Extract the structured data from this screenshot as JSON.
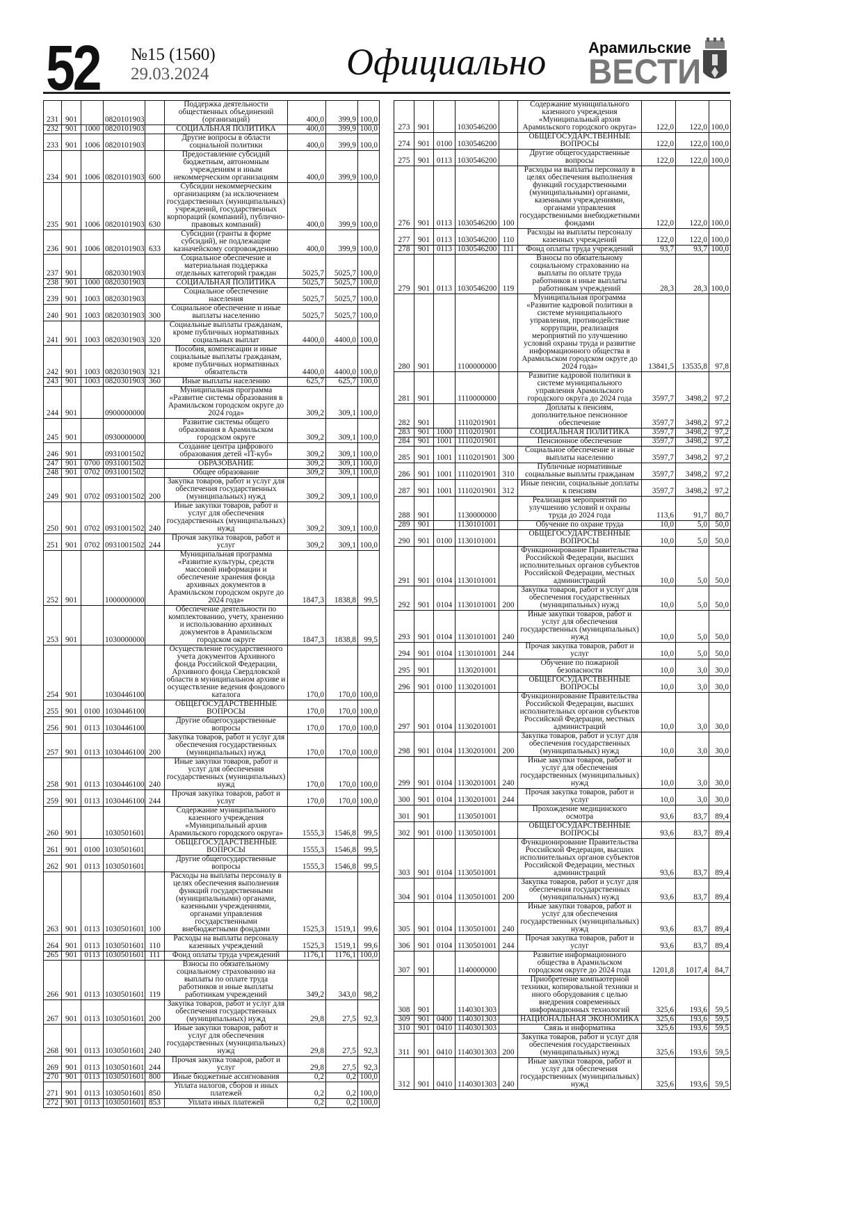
{
  "header": {
    "page_number": "52",
    "issue": "№15 (1560)",
    "date": "29.03.2024",
    "section_title": "Официально",
    "logo_top": "Арамильские",
    "logo_main": "ВЕСТИ",
    "logo_icon": "coat-of-arms-icon"
  },
  "tables": {
    "left": [
      [
        "231",
        "901",
        "",
        "0820101903",
        "",
        "Поддержка деятельности общественных объединений (организаций)",
        "400,0",
        "399,9",
        "100,0"
      ],
      [
        "232",
        "901",
        "1000",
        "0820101903",
        "",
        "СОЦИАЛЬНАЯ ПОЛИТИКА",
        "400,0",
        "399,9",
        "100,0"
      ],
      [
        "233",
        "901",
        "1006",
        "0820101903",
        "",
        "Другие вопросы в области социальной политики",
        "400,0",
        "399,9",
        "100,0"
      ],
      [
        "234",
        "901",
        "1006",
        "0820101903",
        "600",
        "Предоставление субсидий бюджетным, автономным учреждениям и иным некоммерческим организациям",
        "400,0",
        "399,9",
        "100,0"
      ],
      [
        "235",
        "901",
        "1006",
        "0820101903",
        "630",
        "Субсидии некоммерческим организациям (за исключением государственных (муниципальных) учреждений, государственных корпораций (компаний), публично-правовых компаний)",
        "400,0",
        "399,9",
        "100,0"
      ],
      [
        "236",
        "901",
        "1006",
        "0820101903",
        "633",
        "Субсидии (гранты в форме субсидий), не подлежащие казначейскому сопровождению",
        "400,0",
        "399,9",
        "100,0"
      ],
      [
        "237",
        "901",
        "",
        "0820301903",
        "",
        "Социальное обеспечение и материальная поддержка отдельных категорий граждан",
        "5025,7",
        "5025,7",
        "100,0"
      ],
      [
        "238",
        "901",
        "1000",
        "0820301903",
        "",
        "СОЦИАЛЬНАЯ ПОЛИТИКА",
        "5025,7",
        "5025,7",
        "100,0"
      ],
      [
        "239",
        "901",
        "1003",
        "0820301903",
        "",
        "Социальное обеспечение населения",
        "5025,7",
        "5025,7",
        "100,0"
      ],
      [
        "240",
        "901",
        "1003",
        "0820301903",
        "300",
        "Социальное обеспечение и иные выплаты населению",
        "5025,7",
        "5025,7",
        "100,0"
      ],
      [
        "241",
        "901",
        "1003",
        "0820301903",
        "320",
        "Социальные выплаты гражданам, кроме публичных нормативных социальных выплат",
        "4400,0",
        "4400,0",
        "100,0"
      ],
      [
        "242",
        "901",
        "1003",
        "0820301903",
        "321",
        "Пособия, компенсации и иные социальные выплаты гражданам, кроме публичных нормативных обязательств",
        "4400,0",
        "4400,0",
        "100,0"
      ],
      [
        "243",
        "901",
        "1003",
        "0820301903",
        "360",
        "Иные выплаты населению",
        "625,7",
        "625,7",
        "100,0"
      ],
      [
        "244",
        "901",
        "",
        "0900000000",
        "",
        "Муниципальная программа «Развитие системы образования в Арамильском городском округе до 2024 года»",
        "309,2",
        "309,1",
        "100,0"
      ],
      [
        "245",
        "901",
        "",
        "0930000000",
        "",
        "Развитие системы общего образования в Арамильском городском округе",
        "309,2",
        "309,1",
        "100,0"
      ],
      [
        "246",
        "901",
        "",
        "0931001502",
        "",
        "Создание центра цифрового образования детей «IT-куб»",
        "309,2",
        "309,1",
        "100,0"
      ],
      [
        "247",
        "901",
        "0700",
        "0931001502",
        "",
        "ОБРАЗОВАНИЕ",
        "309,2",
        "309,1",
        "100,0"
      ],
      [
        "248",
        "901",
        "0702",
        "0931001502",
        "",
        "Общее образование",
        "309,2",
        "309,1",
        "100,0"
      ],
      [
        "249",
        "901",
        "0702",
        "0931001502",
        "200",
        "Закупка товаров, работ и услуг для обеспечения государственных (муниципальных) нужд",
        "309,2",
        "309,1",
        "100,0"
      ],
      [
        "250",
        "901",
        "0702",
        "0931001502",
        "240",
        "Иные закупки товаров, работ и услуг для обеспечения государственных (муниципальных) нужд",
        "309,2",
        "309,1",
        "100,0"
      ],
      [
        "251",
        "901",
        "0702",
        "0931001502",
        "244",
        "Прочая закупка товаров, работ и услуг",
        "309,2",
        "309,1",
        "100,0"
      ],
      [
        "252",
        "901",
        "",
        "1000000000",
        "",
        "Муниципальная программа «Развитие культуры, средств массовой информации и обеспечение хранения фонда архивных документов в Арамильском городском округе до 2024 года»",
        "1847,3",
        "1838,8",
        "99,5"
      ],
      [
        "253",
        "901",
        "",
        "1030000000",
        "",
        "Обеспечение деятельности по комплектованию, учету, хранению и использованию архивных документов в Арамильском городском округе",
        "1847,3",
        "1838,8",
        "99,5"
      ],
      [
        "254",
        "901",
        "",
        "1030446100",
        "",
        "Осуществление государственного учета документов Архивного фонда Российской Федерации, Архивного фонда Свердловской области в муниципальном архиве и осуществление ведения фондового каталога",
        "170,0",
        "170,0",
        "100,0"
      ],
      [
        "255",
        "901",
        "0100",
        "1030446100",
        "",
        "ОБЩЕГОСУДАРСТВЕННЫЕ ВОПРОСЫ",
        "170,0",
        "170,0",
        "100,0"
      ],
      [
        "256",
        "901",
        "0113",
        "1030446100",
        "",
        "Другие общегосударственные вопросы",
        "170,0",
        "170,0",
        "100,0"
      ],
      [
        "257",
        "901",
        "0113",
        "1030446100",
        "200",
        "Закупка товаров, работ и услуг для обеспечения государственных (муниципальных) нужд",
        "170,0",
        "170,0",
        "100,0"
      ],
      [
        "258",
        "901",
        "0113",
        "1030446100",
        "240",
        "Иные закупки товаров, работ и услуг для обеспечения государственных (муниципальных) нужд",
        "170,0",
        "170,0",
        "100,0"
      ],
      [
        "259",
        "901",
        "0113",
        "1030446100",
        "244",
        "Прочая закупка товаров, работ и услуг",
        "170,0",
        "170,0",
        "100,0"
      ],
      [
        "260",
        "901",
        "",
        "1030501601",
        "",
        "Содержание муниципального казенного учреждения «Муниципальный архив Арамильского городского округа»",
        "1555,3",
        "1546,8",
        "99,5"
      ],
      [
        "261",
        "901",
        "0100",
        "1030501601",
        "",
        "ОБЩЕГОСУДАРСТВЕННЫЕ ВОПРОСЫ",
        "1555,3",
        "1546,8",
        "99,5"
      ],
      [
        "262",
        "901",
        "0113",
        "1030501601",
        "",
        "Другие общегосударственные вопросы",
        "1555,3",
        "1546,8",
        "99,5"
      ],
      [
        "263",
        "901",
        "0113",
        "1030501601",
        "100",
        "Расходы на выплаты персоналу в целях обеспечения выполнения функций государственными (муниципальными) органами, казенными учреждениями, органами управления государственными внебюджетными фондами",
        "1525,3",
        "1519,1",
        "99,6"
      ],
      [
        "264",
        "901",
        "0113",
        "1030501601",
        "110",
        "Расходы на выплаты персоналу казенных учреждений",
        "1525,3",
        "1519,1",
        "99,6"
      ],
      [
        "265",
        "901",
        "0113",
        "1030501601",
        "111",
        "Фонд оплаты труда учреждений",
        "1176,1",
        "1176,1",
        "100,0"
      ],
      [
        "266",
        "901",
        "0113",
        "1030501601",
        "119",
        "Взносы по обязательному социальному страхованию на выплаты по оплате труда работников и иные выплаты работникам учреждений",
        "349,2",
        "343,0",
        "98,2"
      ],
      [
        "267",
        "901",
        "0113",
        "1030501601",
        "200",
        "Закупка товаров, работ и услуг для обеспечения государственных (муниципальных) нужд",
        "29,8",
        "27,5",
        "92,3"
      ],
      [
        "268",
        "901",
        "0113",
        "1030501601",
        "240",
        "Иные закупки товаров, работ и услуг для обеспечения государственных (муниципальных) нужд",
        "29,8",
        "27,5",
        "92,3"
      ],
      [
        "269",
        "901",
        "0113",
        "1030501601",
        "244",
        "Прочая закупка товаров, работ и услуг",
        "29,8",
        "27,5",
        "92,3"
      ],
      [
        "270",
        "901",
        "0113",
        "1030501601",
        "800",
        "Иные бюджетные ассигнования",
        "0,2",
        "0,2",
        "100,0"
      ],
      [
        "271",
        "901",
        "0113",
        "1030501601",
        "850",
        "Уплата налогов, сборов и иных платежей",
        "0,2",
        "0,2",
        "100,0"
      ],
      [
        "272",
        "901",
        "0113",
        "1030501601",
        "853",
        "Уплата иных платежей",
        "0,2",
        "0,2",
        "100,0"
      ]
    ],
    "right": [
      [
        "273",
        "901",
        "",
        "1030546200",
        "",
        "Содержание муниципального казенного учреждения «Муниципальный архив Арамильского городского округа»",
        "122,0",
        "122,0",
        "100,0"
      ],
      [
        "274",
        "901",
        "0100",
        "1030546200",
        "",
        "ОБЩЕГОСУДАРСТВЕННЫЕ ВОПРОСЫ",
        "122,0",
        "122,0",
        "100,0"
      ],
      [
        "275",
        "901",
        "0113",
        "1030546200",
        "",
        "Другие общегосударственные вопросы",
        "122,0",
        "122,0",
        "100,0"
      ],
      [
        "276",
        "901",
        "0113",
        "1030546200",
        "100",
        "Расходы на выплаты персоналу в целях обеспечения выполнения функций государственными (муниципальными) органами, казенными учреждениями, органами управления государственными внебюджетными фондами",
        "122,0",
        "122,0",
        "100,0"
      ],
      [
        "277",
        "901",
        "0113",
        "1030546200",
        "110",
        "Расходы на выплаты персоналу казенных учреждений",
        "122,0",
        "122,0",
        "100,0"
      ],
      [
        "278",
        "901",
        "0113",
        "1030546200",
        "111",
        "Фонд оплаты труда учреждений",
        "93,7",
        "93,7",
        "100,0"
      ],
      [
        "279",
        "901",
        "0113",
        "1030546200",
        "119",
        "Взносы по обязательному социальному страхованию на выплаты по оплате труда работников и иные выплаты работникам учреждений",
        "28,3",
        "28,3",
        "100,0"
      ],
      [
        "280",
        "901",
        "",
        "1100000000",
        "",
        "Муниципальная программа «Развитие кадровой политики в системе муниципального управления, противодействие коррупции, реализация мероприятий по улучшению условий охраны труда и развитие информационного общества в Арамильском городском округе до 2024 года»",
        "13841,5",
        "13535,8",
        "97,8"
      ],
      [
        "281",
        "901",
        "",
        "1110000000",
        "",
        "Развитие кадровой политики в системе муниципального управления Арамильского городского округа до 2024 года",
        "3597,7",
        "3498,2",
        "97,2"
      ],
      [
        "282",
        "901",
        "",
        "1110201901",
        "",
        "Доплаты к пенсиям, дополнительное пенсионное обеспечение",
        "3597,7",
        "3498,2",
        "97,2"
      ],
      [
        "283",
        "901",
        "1000",
        "1110201901",
        "",
        "СОЦИАЛЬНАЯ ПОЛИТИКА",
        "3597,7",
        "3498,2",
        "97,2"
      ],
      [
        "284",
        "901",
        "1001",
        "1110201901",
        "",
        "Пенсионное обеспечение",
        "3597,7",
        "3498,2",
        "97,2"
      ],
      [
        "285",
        "901",
        "1001",
        "1110201901",
        "300",
        "Социальное обеспечение и иные выплаты населению",
        "3597,7",
        "3498,2",
        "97,2"
      ],
      [
        "286",
        "901",
        "1001",
        "1110201901",
        "310",
        "Публичные нормативные социальные выплаты гражданам",
        "3597,7",
        "3498,2",
        "97,2"
      ],
      [
        "287",
        "901",
        "1001",
        "1110201901",
        "312",
        "Иные пенсии, социальные доплаты к пенсиям",
        "3597,7",
        "3498,2",
        "97,2"
      ],
      [
        "288",
        "901",
        "",
        "1130000000",
        "",
        "Реализация мероприятий по улучшению условий и охраны труда до 2024 года",
        "113,6",
        "91,7",
        "80,7"
      ],
      [
        "289",
        "901",
        "",
        "1130101001",
        "",
        "Обучение по охране труда",
        "10,0",
        "5,0",
        "50,0"
      ],
      [
        "290",
        "901",
        "0100",
        "1130101001",
        "",
        "ОБЩЕГОСУДАРСТВЕННЫЕ ВОПРОСЫ",
        "10,0",
        "5,0",
        "50,0"
      ],
      [
        "291",
        "901",
        "0104",
        "1130101001",
        "",
        "Функционирование Правительства Российской Федерации, высших исполнительных органов субъектов Российской Федерации, местных администраций",
        "10,0",
        "5,0",
        "50,0"
      ],
      [
        "292",
        "901",
        "0104",
        "1130101001",
        "200",
        "Закупка товаров, работ и услуг для обеспечения государственных (муниципальных) нужд",
        "10,0",
        "5,0",
        "50,0"
      ],
      [
        "293",
        "901",
        "0104",
        "1130101001",
        "240",
        "Иные закупки товаров, работ и услуг для обеспечения государственных (муниципальных) нужд",
        "10,0",
        "5,0",
        "50,0"
      ],
      [
        "294",
        "901",
        "0104",
        "1130101001",
        "244",
        "Прочая закупка товаров, работ и услуг",
        "10,0",
        "5,0",
        "50,0"
      ],
      [
        "295",
        "901",
        "",
        "1130201001",
        "",
        "Обучение по пожарной безопасности",
        "10,0",
        "3,0",
        "30,0"
      ],
      [
        "296",
        "901",
        "0100",
        "1130201001",
        "",
        "ОБЩЕГОСУДАРСТВЕННЫЕ ВОПРОСЫ",
        "10,0",
        "3,0",
        "30,0"
      ],
      [
        "297",
        "901",
        "0104",
        "1130201001",
        "",
        "Функционирование Правительства Российской Федерации, высших исполнительных органов субъектов Российской Федерации, местных администраций",
        "10,0",
        "3,0",
        "30,0"
      ],
      [
        "298",
        "901",
        "0104",
        "1130201001",
        "200",
        "Закупка товаров, работ и услуг для обеспечения государственных (муниципальных) нужд",
        "10,0",
        "3,0",
        "30,0"
      ],
      [
        "299",
        "901",
        "0104",
        "1130201001",
        "240",
        "Иные закупки товаров, работ и услуг для обеспечения государственных (муниципальных) нужд",
        "10,0",
        "3,0",
        "30,0"
      ],
      [
        "300",
        "901",
        "0104",
        "1130201001",
        "244",
        "Прочая закупка товаров, работ и услуг",
        "10,0",
        "3,0",
        "30,0"
      ],
      [
        "301",
        "901",
        "",
        "1130501001",
        "",
        "Прохождение медицинского осмотра",
        "93,6",
        "83,7",
        "89,4"
      ],
      [
        "302",
        "901",
        "0100",
        "1130501001",
        "",
        "ОБЩЕГОСУДАРСТВЕННЫЕ ВОПРОСЫ",
        "93,6",
        "83,7",
        "89,4"
      ],
      [
        "303",
        "901",
        "0104",
        "1130501001",
        "",
        "Функционирование Правительства Российской Федерации, высших исполнительных органов субъектов Российской Федерации, местных администраций",
        "93,6",
        "83,7",
        "89,4"
      ],
      [
        "304",
        "901",
        "0104",
        "1130501001",
        "200",
        "Закупка товаров, работ и услуг для обеспечения государственных (муниципальных) нужд",
        "93,6",
        "83,7",
        "89,4"
      ],
      [
        "305",
        "901",
        "0104",
        "1130501001",
        "240",
        "Иные закупки товаров, работ и услуг для обеспечения государственных (муниципальных) нужд",
        "93,6",
        "83,7",
        "89,4"
      ],
      [
        "306",
        "901",
        "0104",
        "1130501001",
        "244",
        "Прочая закупка товаров, работ и услуг",
        "93,6",
        "83,7",
        "89,4"
      ],
      [
        "307",
        "901",
        "",
        "1140000000",
        "",
        "Развитие информационного общества в Арамильском городском округе до 2024 года",
        "1201,8",
        "1017,4",
        "84,7"
      ],
      [
        "308",
        "901",
        "",
        "1140301303",
        "",
        "Приобретение компьютерной техники, копировальной техники и иного оборудования с целью внедрения современных информационных технологий",
        "325,6",
        "193,6",
        "59,5"
      ],
      [
        "309",
        "901",
        "0400",
        "1140301303",
        "",
        "НАЦИОНАЛЬНАЯ ЭКОНОМИКА",
        "325,6",
        "193,6",
        "59,5"
      ],
      [
        "310",
        "901",
        "0410",
        "1140301303",
        "",
        "Связь и информатика",
        "325,6",
        "193,6",
        "59,5"
      ],
      [
        "311",
        "901",
        "0410",
        "1140301303",
        "200",
        "Закупка товаров, работ и услуг для обеспечения государственных (муниципальных) нужд",
        "325,6",
        "193,6",
        "59,5"
      ],
      [
        "312",
        "901",
        "0410",
        "1140301303",
        "240",
        "Иные закупки товаров, работ и услуг для обеспечения государственных (муниципальных) нужд",
        "325,6",
        "193,6",
        "59,5"
      ]
    ]
  }
}
